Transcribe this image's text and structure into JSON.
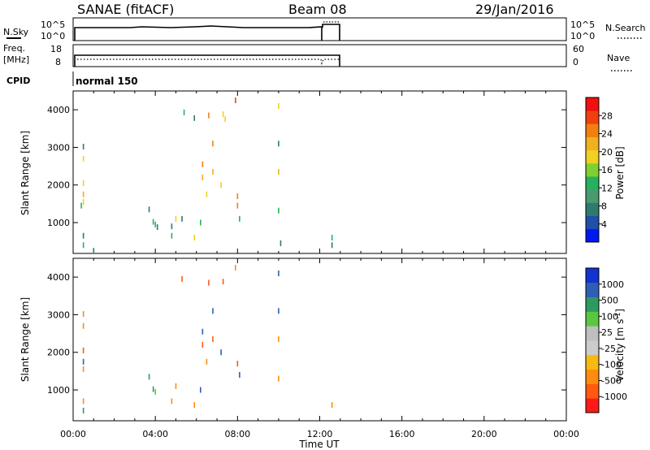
{
  "header": {
    "station": "SANAE (fitACF)",
    "beam": "Beam 08",
    "date": "29/Jan/2016"
  },
  "status_panels": {
    "nsky_label": "N.Sky",
    "nsearch_label": "N.Search",
    "power_tick_top": "10^5",
    "power_tick_bottom": "10^0",
    "freq_label_line1": "Freq.",
    "freq_label_line2": "[MHz]",
    "freq_ticks": [
      "18",
      "8"
    ],
    "nave_label": "Nave",
    "nave_ticks": [
      "60",
      "0"
    ],
    "cpid_label": "CPID",
    "cpid_text": "normal 150"
  },
  "colors": {
    "power_scale": [
      "#0018f0",
      "#1f4fa8",
      "#2e7a6e",
      "#4a9a70",
      "#26b060",
      "#7fd030",
      "#f0d020",
      "#f0b020",
      "#f08010",
      "#f04010",
      "#f01010"
    ],
    "velocity_scale": [
      "#ff1a1a",
      "#ff5a10",
      "#ff8c10",
      "#f6ba10",
      "#cccccc",
      "#bfbfbf",
      "#58c840",
      "#2f9a60",
      "#2f5fb4",
      "#1432d0"
    ]
  },
  "chart_data": [
    {
      "type": "heatmap",
      "name": "power",
      "xlabel": "",
      "ylabel": "Slant Range [km]",
      "xlim": [
        0,
        24
      ],
      "ylim": [
        180,
        4500
      ],
      "yticks": [
        1000,
        2000,
        3000,
        4000
      ],
      "colorbar": {
        "label": "Power [dB]",
        "ticks": [
          "4",
          "8",
          "12",
          "16",
          "20",
          "24",
          "28"
        ]
      },
      "points": [
        {
          "t": 0.4,
          "r": 1450,
          "v": 12
        },
        {
          "t": 0.5,
          "r": 3020,
          "v": 6
        },
        {
          "t": 0.5,
          "r": 2700,
          "v": 20
        },
        {
          "t": 0.5,
          "r": 2050,
          "v": 20
        },
        {
          "t": 0.5,
          "r": 1750,
          "v": 22
        },
        {
          "t": 0.5,
          "r": 1550,
          "v": 20
        },
        {
          "t": 0.5,
          "r": 650,
          "v": 8
        },
        {
          "t": 0.5,
          "r": 400,
          "v": 12
        },
        {
          "t": 1.0,
          "r": 250,
          "v": 8
        },
        {
          "t": 3.7,
          "r": 1350,
          "v": 6
        },
        {
          "t": 3.9,
          "r": 1020,
          "v": 12
        },
        {
          "t": 4.0,
          "r": 950,
          "v": 14
        },
        {
          "t": 4.1,
          "r": 880,
          "v": 8
        },
        {
          "t": 4.8,
          "r": 900,
          "v": 8
        },
        {
          "t": 4.8,
          "r": 650,
          "v": 14
        },
        {
          "t": 5.0,
          "r": 1100,
          "v": 20
        },
        {
          "t": 5.3,
          "r": 1100,
          "v": 6
        },
        {
          "t": 5.4,
          "r": 3930,
          "v": 12
        },
        {
          "t": 5.9,
          "r": 3780,
          "v": 6
        },
        {
          "t": 5.9,
          "r": 600,
          "v": 20
        },
        {
          "t": 6.2,
          "r": 1000,
          "v": 12
        },
        {
          "t": 6.3,
          "r": 2550,
          "v": 24
        },
        {
          "t": 6.3,
          "r": 2200,
          "v": 22
        },
        {
          "t": 6.5,
          "r": 1750,
          "v": 20
        },
        {
          "t": 6.6,
          "r": 3850,
          "v": 26
        },
        {
          "t": 6.8,
          "r": 3100,
          "v": 24
        },
        {
          "t": 6.8,
          "r": 2350,
          "v": 22
        },
        {
          "t": 7.2,
          "r": 2000,
          "v": 20
        },
        {
          "t": 7.3,
          "r": 3880,
          "v": 20
        },
        {
          "t": 7.4,
          "r": 3750,
          "v": 20
        },
        {
          "t": 7.9,
          "r": 4250,
          "v": 28
        },
        {
          "t": 8.0,
          "r": 1700,
          "v": 26
        },
        {
          "t": 8.0,
          "r": 1450,
          "v": 24
        },
        {
          "t": 8.1,
          "r": 1100,
          "v": 12
        },
        {
          "t": 10.0,
          "r": 4100,
          "v": 20
        },
        {
          "t": 10.0,
          "r": 3100,
          "v": 6
        },
        {
          "t": 10.0,
          "r": 2350,
          "v": 22
        },
        {
          "t": 10.0,
          "r": 1320,
          "v": 12
        },
        {
          "t": 10.1,
          "r": 450,
          "v": 8
        },
        {
          "t": 12.6,
          "r": 600,
          "v": 12
        },
        {
          "t": 12.6,
          "r": 400,
          "v": 8
        }
      ]
    },
    {
      "type": "heatmap",
      "name": "velocity",
      "xlabel": "Time UT",
      "ylabel": "Slant Range [km]",
      "xlim": [
        0,
        24
      ],
      "ylim": [
        180,
        4500
      ],
      "xticks": [
        "00:00",
        "04:00",
        "08:00",
        "12:00",
        "16:00",
        "20:00",
        "00:00"
      ],
      "yticks": [
        1000,
        2000,
        3000,
        4000
      ],
      "colorbar": {
        "label": "Velocity [m s-1]",
        "ticks": [
          "-1000",
          "-500",
          "-100",
          "-25",
          "25",
          "100",
          "500",
          "1000"
        ]
      },
      "points": [
        {
          "t": 0.5,
          "r": 3020,
          "v": -300
        },
        {
          "t": 0.5,
          "r": 2700,
          "v": -200
        },
        {
          "t": 0.5,
          "r": 2050,
          "v": -700
        },
        {
          "t": 0.5,
          "r": 1750,
          "v": 600
        },
        {
          "t": 0.5,
          "r": 1550,
          "v": -150
        },
        {
          "t": 0.5,
          "r": 700,
          "v": -100
        },
        {
          "t": 0.5,
          "r": 450,
          "v": 150
        },
        {
          "t": 3.7,
          "r": 1350,
          "v": 500
        },
        {
          "t": 3.9,
          "r": 1020,
          "v": 150
        },
        {
          "t": 4.0,
          "r": 950,
          "v": 80
        },
        {
          "t": 4.8,
          "r": 700,
          "v": -100
        },
        {
          "t": 5.0,
          "r": 1100,
          "v": -200
        },
        {
          "t": 5.3,
          "r": 3950,
          "v": -700
        },
        {
          "t": 5.9,
          "r": 600,
          "v": -200
        },
        {
          "t": 6.2,
          "r": 1000,
          "v": 800
        },
        {
          "t": 6.3,
          "r": 2550,
          "v": 900
        },
        {
          "t": 6.3,
          "r": 2200,
          "v": -700
        },
        {
          "t": 6.5,
          "r": 1750,
          "v": -300
        },
        {
          "t": 6.6,
          "r": 3850,
          "v": -500
        },
        {
          "t": 6.8,
          "r": 3100,
          "v": 900
        },
        {
          "t": 6.8,
          "r": 2350,
          "v": -600
        },
        {
          "t": 7.2,
          "r": 2000,
          "v": 700
        },
        {
          "t": 7.3,
          "r": 3880,
          "v": -700
        },
        {
          "t": 7.9,
          "r": 4250,
          "v": -100
        },
        {
          "t": 8.0,
          "r": 1700,
          "v": -700
        },
        {
          "t": 8.1,
          "r": 1400,
          "v": 600
        },
        {
          "t": 10.0,
          "r": 4100,
          "v": 900
        },
        {
          "t": 10.0,
          "r": 3100,
          "v": 1000
        },
        {
          "t": 10.0,
          "r": 2350,
          "v": -200
        },
        {
          "t": 10.0,
          "r": 1300,
          "v": -100
        },
        {
          "t": 12.6,
          "r": 600,
          "v": -100
        }
      ]
    }
  ]
}
